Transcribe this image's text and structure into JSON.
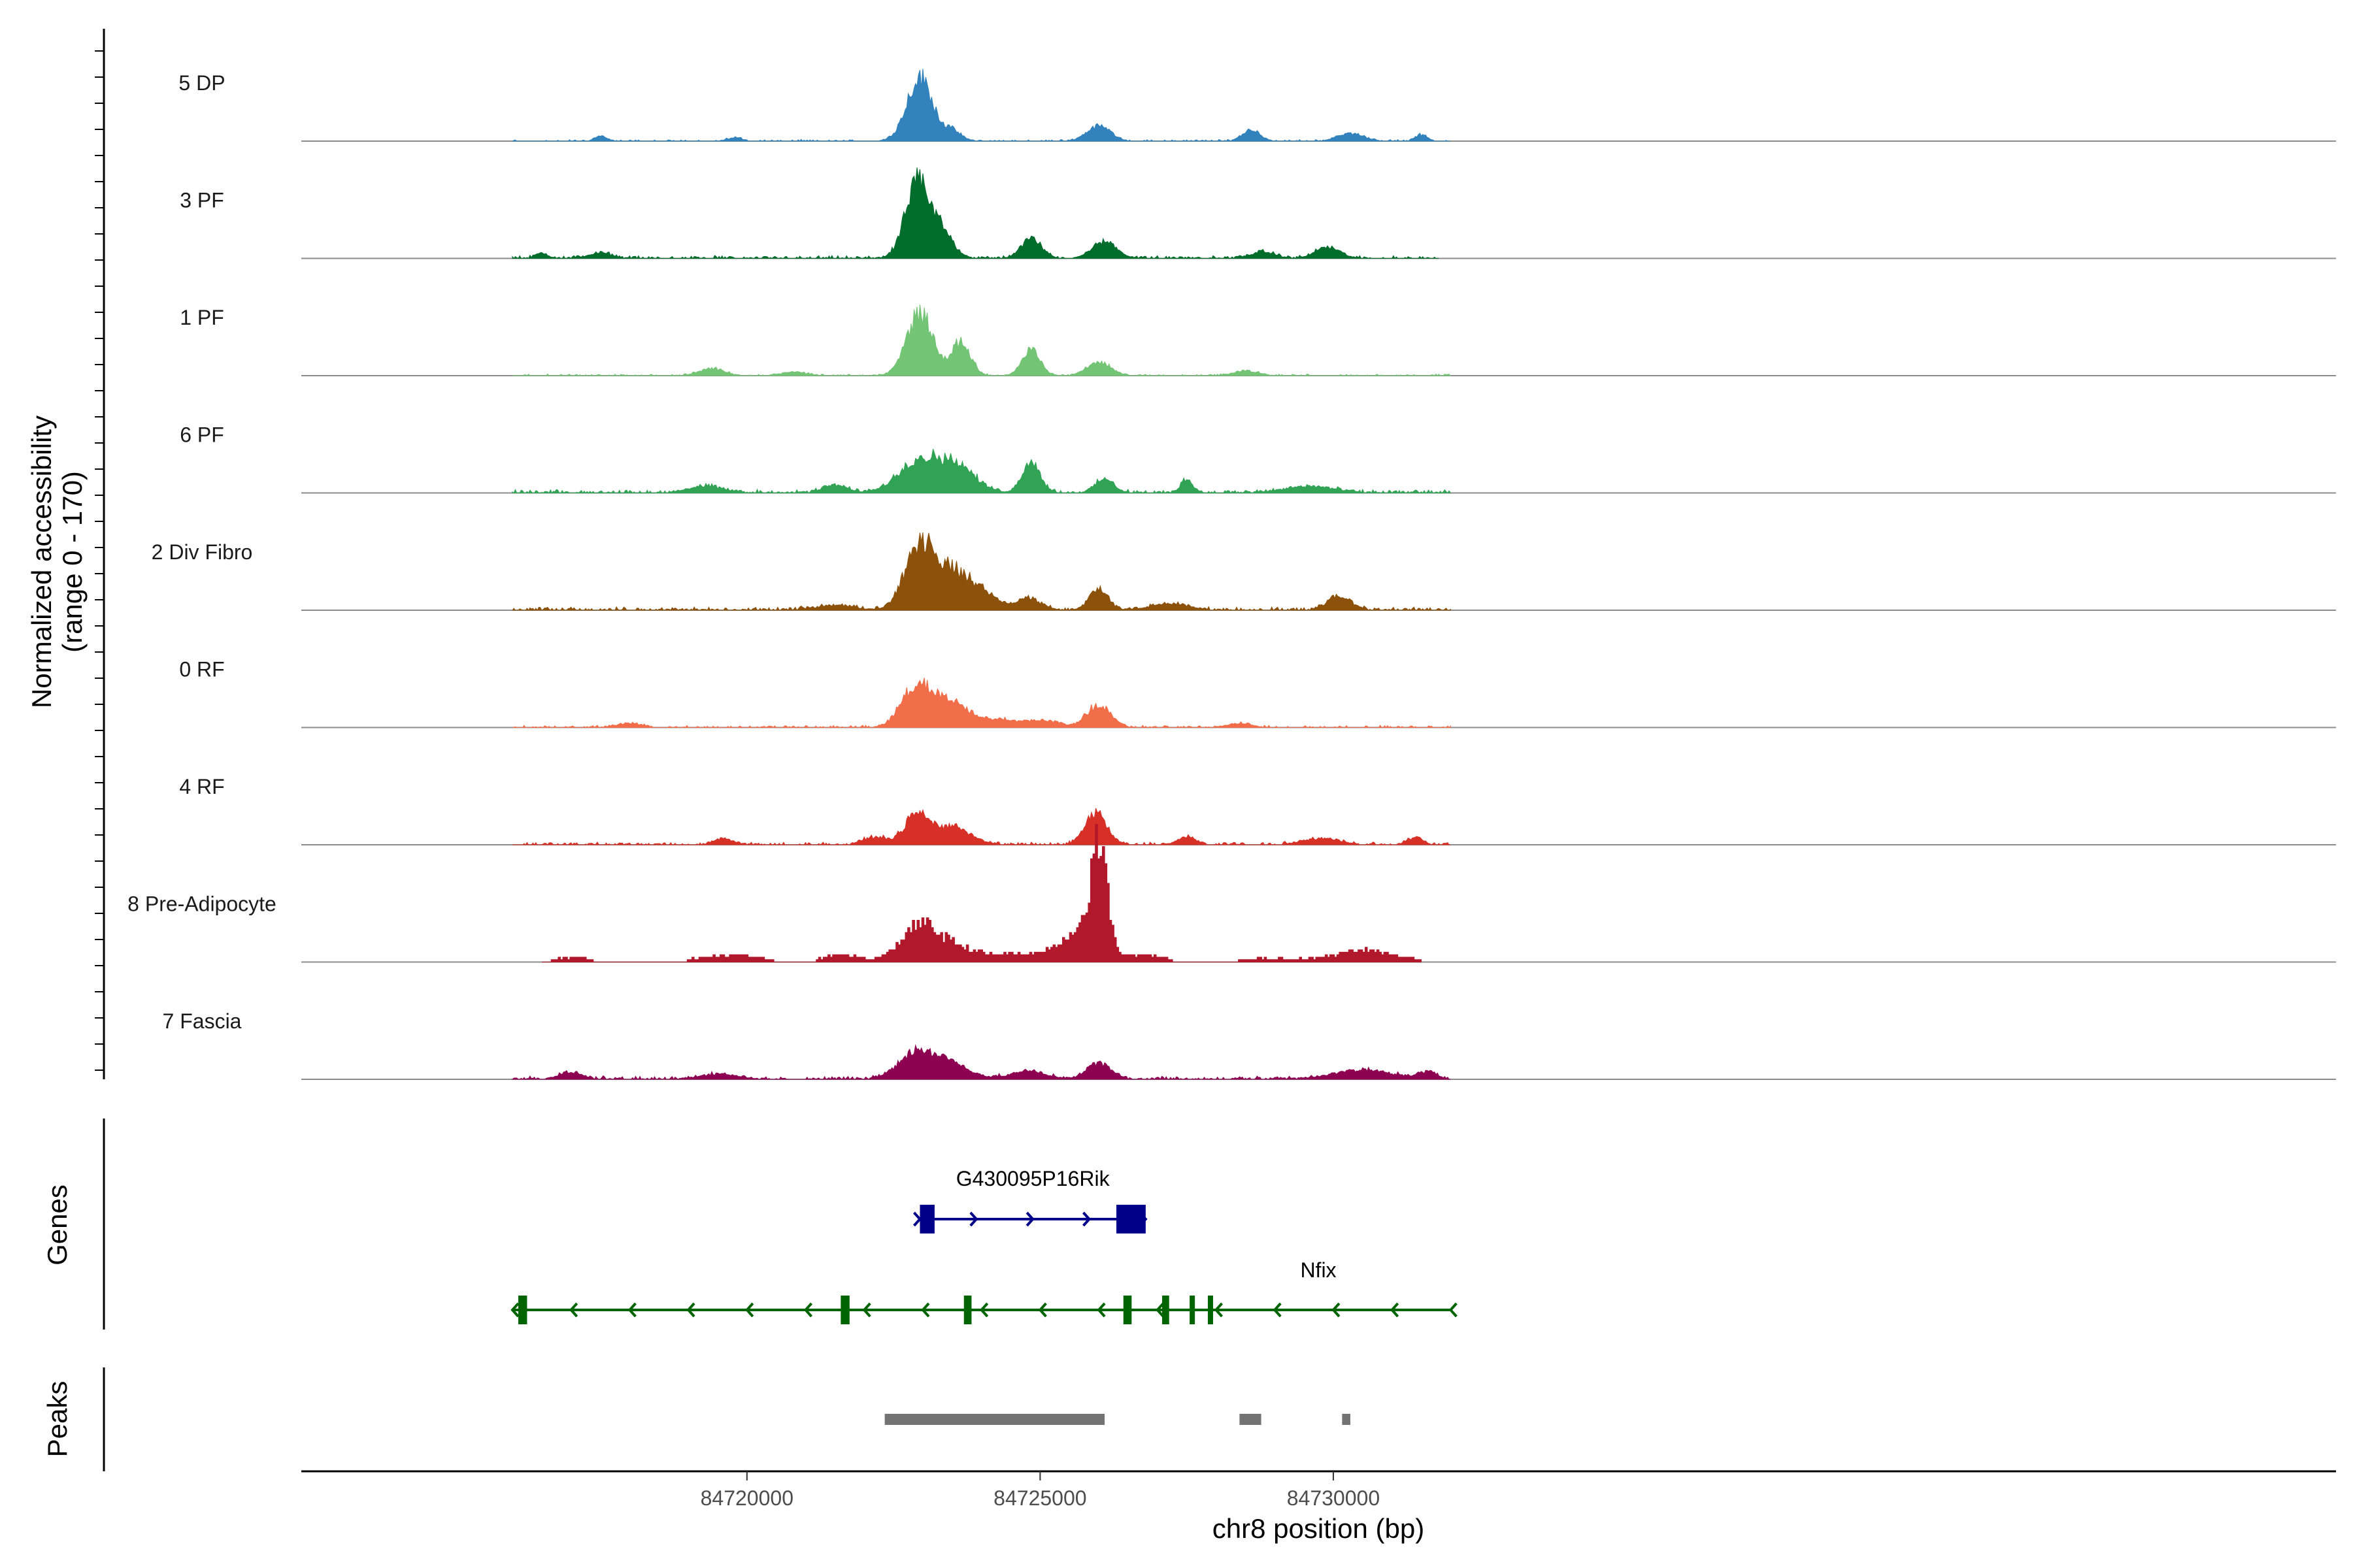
{
  "chart_data": {
    "type": "area",
    "title": "",
    "xlabel": "chr8 position (bp)",
    "ylabel_line1": "Normalized accessibility",
    "ylabel_line2": "(range 0 - 170)",
    "ylim": [
      0,
      170
    ],
    "x_range": [
      84712400,
      84747100
    ],
    "x_ticks": [
      {
        "value": 84720000,
        "label": "84720000"
      },
      {
        "value": 84725000,
        "label": "84725000"
      },
      {
        "value": 84730000,
        "label": "84730000"
      }
    ],
    "genes_label": "Genes",
    "peaks_label": "Peaks",
    "tracks": [
      {
        "name": "5 DP",
        "color": "#3182bd",
        "blocky": false,
        "noise": 3,
        "start": 84716000,
        "end": 84732000,
        "peaks": [
          [
            84722950,
            220,
            105
          ],
          [
            84723500,
            150,
            16
          ],
          [
            84726000,
            200,
            25
          ],
          [
            84728600,
            150,
            18
          ],
          [
            84730300,
            220,
            12
          ],
          [
            84731500,
            100,
            10
          ],
          [
            84717500,
            100,
            8
          ],
          [
            84719800,
            100,
            6
          ]
        ]
      },
      {
        "name": "3 PF",
        "color": "#006d2c",
        "blocky": false,
        "noise": 5,
        "start": 84716000,
        "end": 84731800,
        "peaks": [
          [
            84722900,
            200,
            120
          ],
          [
            84723300,
            200,
            45
          ],
          [
            84724850,
            170,
            32
          ],
          [
            84726100,
            200,
            28
          ],
          [
            84729900,
            200,
            18
          ],
          [
            84728800,
            200,
            10
          ],
          [
            84717500,
            200,
            8
          ],
          [
            84716500,
            100,
            8
          ]
        ]
      },
      {
        "name": "1 PF",
        "color": "#74c476",
        "blocky": false,
        "noise": 3,
        "start": 84716000,
        "end": 84732000,
        "peaks": [
          [
            84722950,
            220,
            105
          ],
          [
            84723650,
            160,
            56
          ],
          [
            84724850,
            150,
            42
          ],
          [
            84726000,
            200,
            22
          ],
          [
            84719400,
            200,
            12
          ],
          [
            84720800,
            200,
            6
          ],
          [
            84728500,
            200,
            8
          ]
        ]
      },
      {
        "name": "6 PF",
        "color": "#31a354",
        "blocky": false,
        "noise": 6,
        "start": 84716000,
        "end": 84732000,
        "peaks": [
          [
            84722950,
            350,
            55
          ],
          [
            84723600,
            300,
            40
          ],
          [
            84724850,
            150,
            52
          ],
          [
            84726100,
            150,
            22
          ],
          [
            84727500,
            100,
            22
          ],
          [
            84721500,
            200,
            12
          ],
          [
            84729600,
            400,
            10
          ],
          [
            84719300,
            300,
            10
          ]
        ]
      },
      {
        "name": "2 Div Fibro",
        "color": "#8c510a",
        "blocky": false,
        "noise": 6,
        "start": 84716000,
        "end": 84732000,
        "peaks": [
          [
            84722950,
            250,
            110
          ],
          [
            84723500,
            250,
            58
          ],
          [
            84724000,
            250,
            30
          ],
          [
            84724800,
            200,
            20
          ],
          [
            84726000,
            150,
            36
          ],
          [
            84730100,
            200,
            22
          ],
          [
            84727200,
            300,
            10
          ],
          [
            84721500,
            300,
            8
          ]
        ]
      },
      {
        "name": "0 RF",
        "color": "#f26e4b",
        "blocky": false,
        "noise": 4,
        "start": 84716000,
        "end": 84732000,
        "peaks": [
          [
            84722900,
            250,
            70
          ],
          [
            84723500,
            300,
            40
          ],
          [
            84724300,
            250,
            12
          ],
          [
            84726000,
            200,
            36
          ],
          [
            84725000,
            300,
            12
          ],
          [
            84718000,
            200,
            6
          ],
          [
            84728400,
            200,
            6
          ]
        ]
      },
      {
        "name": "4 RF",
        "color": "#d73027",
        "blocky": false,
        "noise": 5,
        "start": 84716000,
        "end": 84732000,
        "peaks": [
          [
            84722900,
            200,
            50
          ],
          [
            84723500,
            300,
            30
          ],
          [
            84725950,
            180,
            52
          ],
          [
            84722200,
            200,
            12
          ],
          [
            84727500,
            150,
            12
          ],
          [
            84729800,
            300,
            10
          ],
          [
            84731400,
            120,
            12
          ],
          [
            84719600,
            150,
            10
          ]
        ]
      },
      {
        "name": "8 Pre-Adipocyte",
        "color": "#b2182b",
        "blocky": true,
        "noise": 0,
        "start": 84716500,
        "end": 84731500,
        "peaks": [
          [
            84726000,
            120,
            162
          ],
          [
            84725800,
            300,
            60
          ],
          [
            84723400,
            500,
            28
          ],
          [
            84722900,
            300,
            48
          ],
          [
            84725300,
            400,
            16
          ],
          [
            84724500,
            300,
            10
          ],
          [
            84719700,
            500,
            12
          ],
          [
            84730500,
            400,
            12
          ],
          [
            84721600,
            300,
            12
          ],
          [
            84730600,
            800,
            8
          ],
          [
            84728800,
            600,
            5
          ],
          [
            84717000,
            300,
            8
          ],
          [
            84726800,
            300,
            12
          ]
        ]
      },
      {
        "name": "7 Fascia",
        "color": "#8e0152",
        "blocky": false,
        "noise": 6,
        "start": 84716000,
        "end": 84732000,
        "peaks": [
          [
            84722900,
            300,
            45
          ],
          [
            84723500,
            300,
            24
          ],
          [
            84726000,
            200,
            26
          ],
          [
            84724800,
            300,
            12
          ],
          [
            84730500,
            500,
            14
          ],
          [
            84717000,
            200,
            10
          ],
          [
            84719500,
            300,
            8
          ],
          [
            84731600,
            150,
            10
          ]
        ]
      }
    ],
    "genes": [
      {
        "name": "G430095P16Rik",
        "strand": "+",
        "color": "#00008b",
        "start": 84722950,
        "end": 84726800,
        "exons": [
          [
            84722950,
            84723200
          ],
          [
            84726300,
            84726800
          ]
        ]
      },
      {
        "name": "Nfix",
        "strand": "-",
        "color": "#006400",
        "start": 84716000,
        "end": 84732000,
        "exons": [
          [
            84716100,
            84716250
          ],
          [
            84721600,
            84721750
          ],
          [
            84723700,
            84723830
          ],
          [
            84726420,
            84726560
          ],
          [
            84727080,
            84727200
          ],
          [
            84727550,
            84727620
          ],
          [
            84727860,
            84727920
          ]
        ]
      }
    ],
    "peaks": [
      {
        "start": 84722350,
        "end": 84726100
      },
      {
        "start": 84728400,
        "end": 84728770
      },
      {
        "start": 84730150,
        "end": 84730290
      }
    ]
  }
}
